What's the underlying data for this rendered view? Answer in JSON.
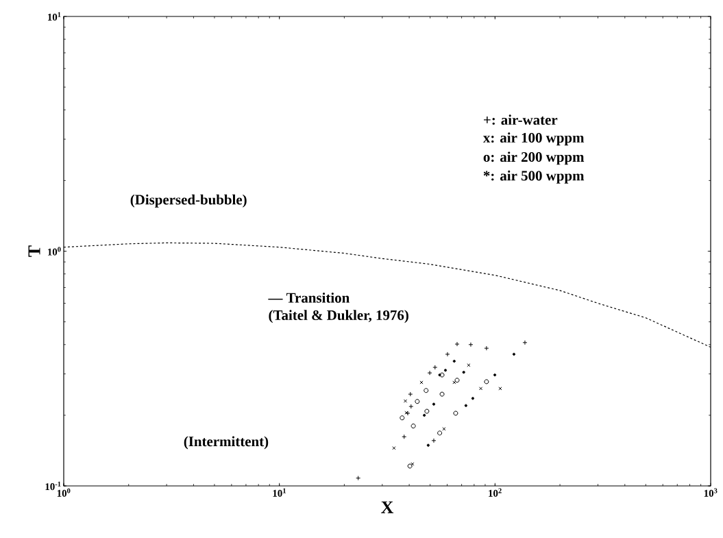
{
  "chart_data": {
    "type": "scatter",
    "xlabel": "X",
    "ylabel": "T",
    "log": "xy",
    "xlim": [
      1,
      1000
    ],
    "ylim": [
      0.1,
      10
    ],
    "xticks": [
      {
        "value": 1,
        "label": "10$^{0}$"
      },
      {
        "value": 10,
        "label": "10$^{1}$"
      },
      {
        "value": 100,
        "label": "10$^{2}$"
      },
      {
        "value": 1000,
        "label": "10$^{3}$"
      }
    ],
    "yticks": [
      {
        "value": 0.1,
        "label": "10$^{-1}$"
      },
      {
        "value": 1,
        "label": "10$^{0}$"
      },
      {
        "value": 10,
        "label": "10$^{1}$"
      }
    ],
    "grid": false,
    "series": [
      {
        "type": "line",
        "color": "#000000",
        "line_style": "dashed",
        "marker": "none",
        "x": [
          1,
          2,
          3,
          5,
          10,
          20,
          30,
          50,
          100,
          200,
          300,
          500,
          1000
        ],
        "values": [
          1.04,
          1.075,
          1.085,
          1.08,
          1.04,
          0.98,
          0.93,
          0.88,
          0.79,
          0.68,
          0.6,
          0.52,
          0.39
        ]
      },
      {
        "color": "#000000",
        "marker": "plus",
        "x": [
          23.2,
          37.9,
          39.4,
          40.8,
          40.5,
          49.8,
          52.7,
          60.2,
          66.7,
          77.2,
          91.3,
          137.6,
          52.0
        ],
        "values": [
          0.108,
          0.162,
          0.204,
          0.218,
          0.246,
          0.303,
          0.32,
          0.364,
          0.402,
          0.4,
          0.386,
          0.408,
          0.156
        ]
      },
      {
        "color": "#000000",
        "marker": "cross",
        "x": [
          34.0,
          38.4,
          45.6,
          38.8,
          75.5,
          64.7,
          105.7,
          85.9,
          58.0,
          41.4
        ],
        "values": [
          0.145,
          0.23,
          0.276,
          0.205,
          0.327,
          0.276,
          0.26,
          0.26,
          0.175,
          0.124
        ]
      },
      {
        "color": "#000000",
        "marker": "circle",
        "x": [
          37.1,
          43.6,
          48.3,
          56.8,
          47.9,
          56.8,
          65.7,
          66.7,
          91.3,
          41.8,
          40.3,
          55.4
        ],
        "values": [
          0.195,
          0.229,
          0.208,
          0.297,
          0.255,
          0.246,
          0.204,
          0.282,
          0.278,
          0.18,
          0.1215,
          0.168
        ]
      },
      {
        "color": "#000000",
        "x": [
          58.9,
          71.6,
          64.7,
          52.0,
          99.8,
          78.9,
          122.4,
          55.4,
          73.3,
          49.0,
          47.0
        ],
        "values": [
          0.311,
          0.305,
          0.34,
          0.223,
          0.297,
          0.236,
          0.364,
          0.297,
          0.22,
          0.149,
          0.2
        ]
      }
    ],
    "annotations": [
      "+: air-water",
      "x: air 100 wppm",
      "o: air 200 wppm",
      "*: air 500 wppm",
      "(Dispersed-bubble)",
      "— Transition",
      "(Taitel & Dukler, 1976)",
      "(Intermittent)"
    ]
  }
}
